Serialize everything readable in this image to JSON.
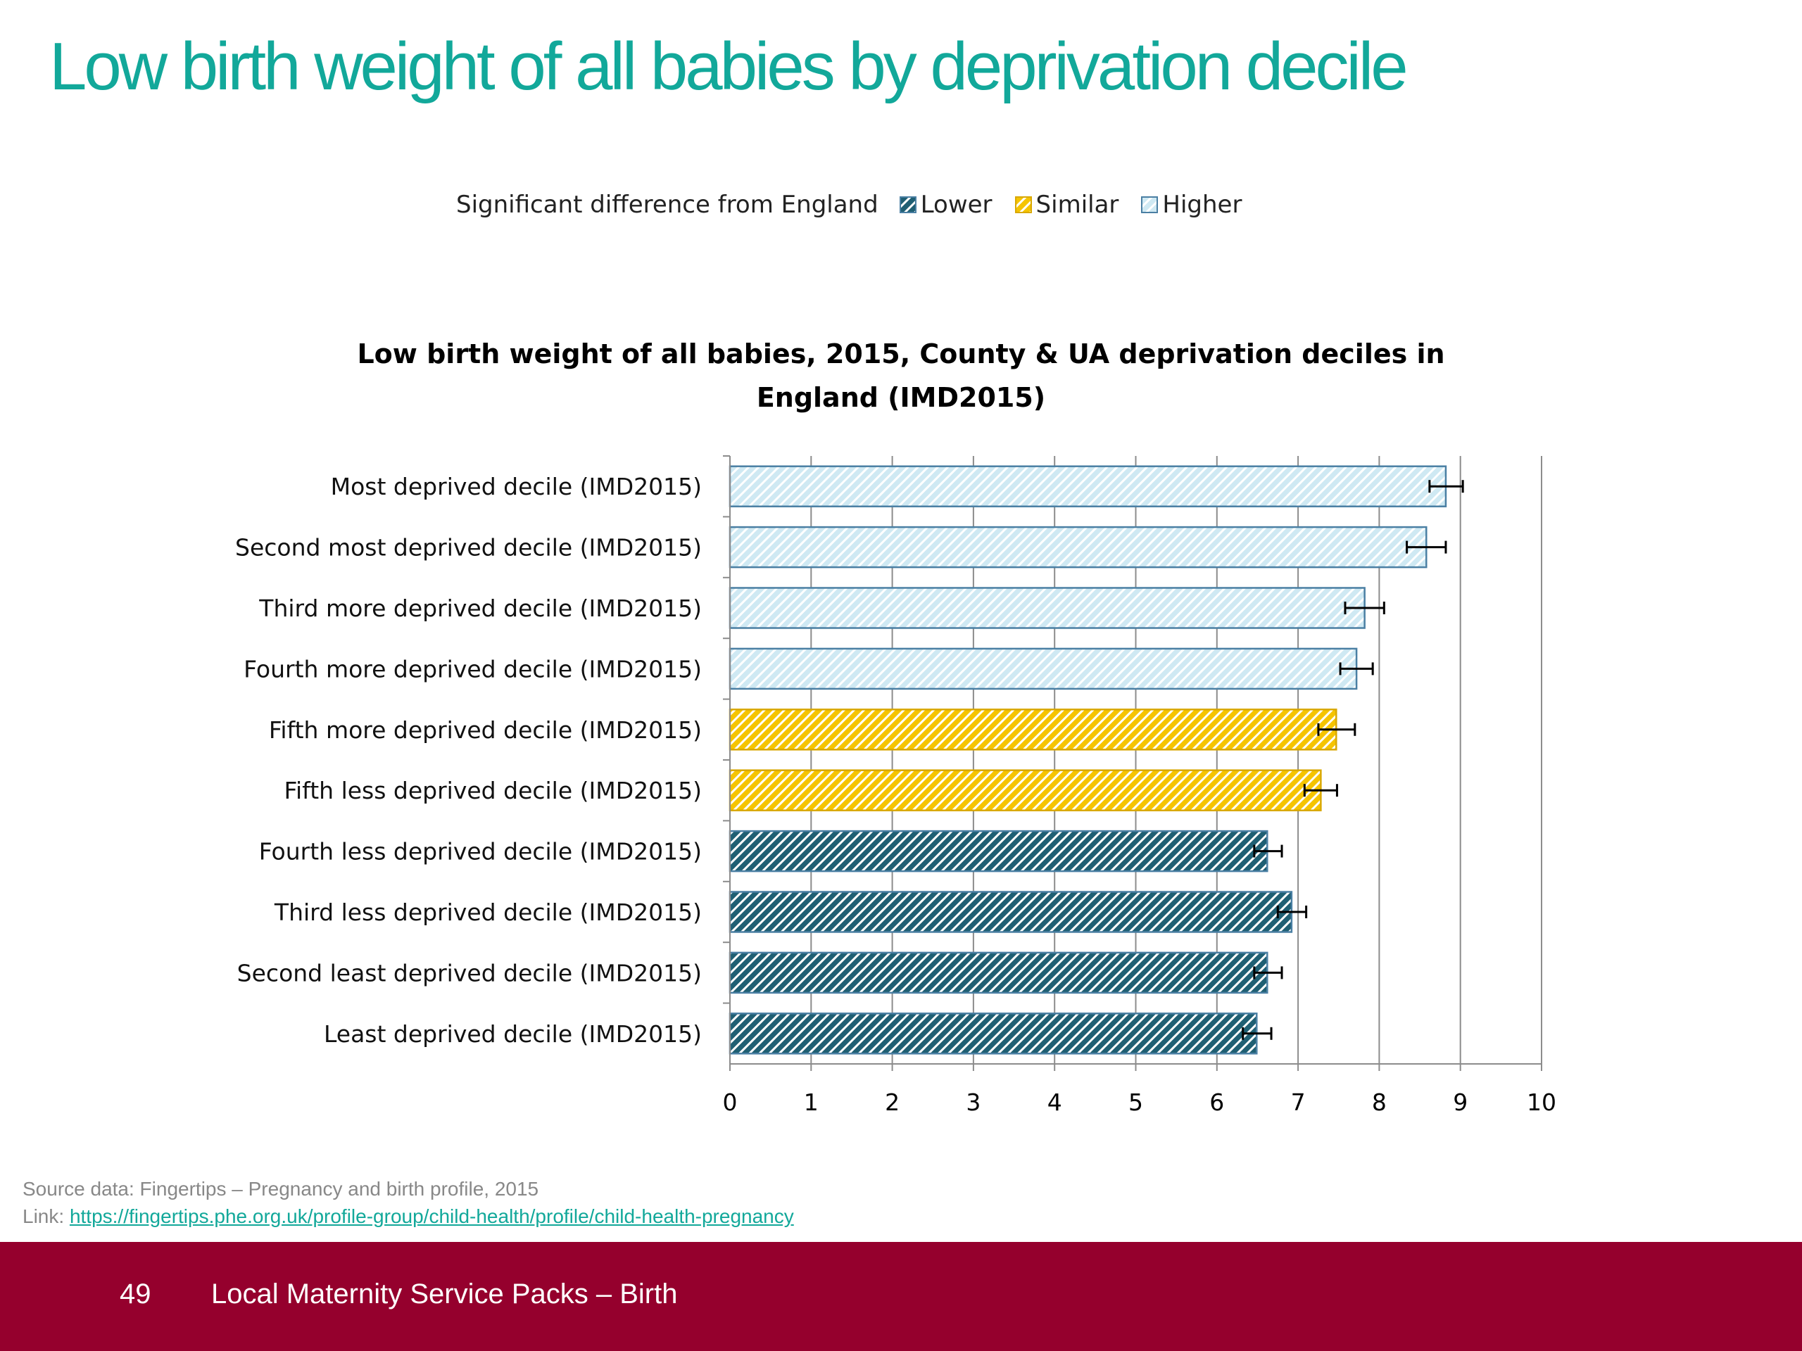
{
  "slide": {
    "title": "Low birth weight of all babies by deprivation decile"
  },
  "legend": {
    "label": "Significant difference from England",
    "items": [
      {
        "key": "lower",
        "label": "Lower"
      },
      {
        "key": "similar",
        "label": "Similar"
      },
      {
        "key": "higher",
        "label": "Higher"
      }
    ]
  },
  "colors": {
    "lower_fill": "#1f5f73",
    "lower_stripe": "#ffffff",
    "similar_fill": "#f5c400",
    "similar_stripe": "#ffffff",
    "higher_fill": "#cfe9f3",
    "higher_stripe": "#ffffff",
    "bar_border": "#4a7fa3",
    "title_teal": "#12a89a",
    "footer_bg": "#95002d"
  },
  "chart_data": {
    "type": "bar",
    "orientation": "horizontal",
    "title": "Low birth weight of all babies, 2015, County & UA deprivation deciles in England (IMD2015)",
    "title_line1": "Low birth weight of all babies, 2015, County & UA deprivation deciles in",
    "title_line2": "England (IMD2015)",
    "xlim": [
      0,
      10
    ],
    "x_ticks": [
      0,
      1,
      2,
      3,
      4,
      5,
      6,
      7,
      8,
      9,
      10
    ],
    "grid": true,
    "error_bars": true,
    "categories": [
      "Most deprived decile (IMD2015)",
      "Second most deprived decile (IMD2015)",
      "Third more deprived decile (IMD2015)",
      "Fourth more deprived decile (IMD2015)",
      "Fifth more deprived decile (IMD2015)",
      "Fifth less deprived decile (IMD2015)",
      "Fourth less deprived decile (IMD2015)",
      "Third less deprived decile (IMD2015)",
      "Second least deprived decile (IMD2015)",
      "Least deprived decile (IMD2015)"
    ],
    "values": [
      8.82,
      8.58,
      7.82,
      7.72,
      7.47,
      7.28,
      6.62,
      6.92,
      6.62,
      6.49
    ],
    "ci_lower": [
      8.62,
      8.34,
      7.58,
      7.52,
      7.25,
      7.08,
      6.46,
      6.75,
      6.46,
      6.32
    ],
    "ci_upper": [
      9.03,
      8.82,
      8.06,
      7.92,
      7.7,
      7.48,
      6.8,
      7.1,
      6.8,
      6.67
    ],
    "significance": [
      "higher",
      "higher",
      "higher",
      "higher",
      "similar",
      "similar",
      "lower",
      "lower",
      "lower",
      "lower"
    ]
  },
  "source": {
    "text": "Source data: Fingertips – Pregnancy and birth profile, 2015",
    "link_prefix": "Link: ",
    "link_text": "https://fingertips.phe.org.uk/profile-group/child-health/profile/child-health-pregnancy"
  },
  "footer": {
    "page_number": "49",
    "text": "Local Maternity Service Packs – Birth"
  }
}
